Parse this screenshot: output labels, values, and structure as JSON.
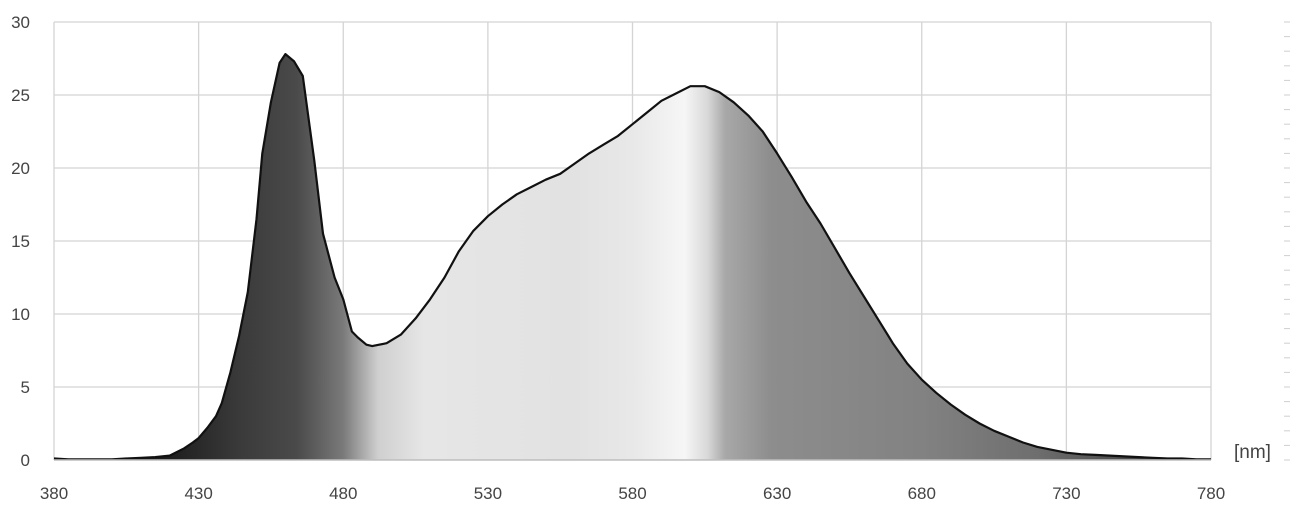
{
  "chart_data": {
    "type": "area",
    "title": "",
    "xlabel": "",
    "ylabel": "",
    "x_unit_label": "[nm]",
    "xlim": [
      380,
      780
    ],
    "ylim": [
      0,
      30
    ],
    "x_ticks": [
      "380",
      "430",
      "480",
      "530",
      "580",
      "630",
      "680",
      "730",
      "780"
    ],
    "y_ticks": [
      "0",
      "5",
      "10",
      "15",
      "20",
      "25",
      "30"
    ],
    "grid": true,
    "legend": "none",
    "fill": "visible-spectrum gradient rendered in grayscale",
    "line_color": "#111111",
    "series": [
      {
        "x": [
          380,
          385,
          390,
          395,
          400,
          405,
          410,
          415,
          420,
          425,
          428,
          430,
          433,
          436,
          438,
          441,
          444,
          447,
          450,
          452,
          455,
          458,
          460,
          463,
          466,
          470,
          473,
          477,
          480,
          483,
          485,
          488,
          490,
          495,
          500,
          505,
          510,
          515,
          520,
          525,
          530,
          535,
          540,
          545,
          550,
          555,
          560,
          565,
          570,
          575,
          580,
          585,
          590,
          595,
          600,
          605,
          610,
          615,
          620,
          625,
          630,
          635,
          640,
          645,
          650,
          655,
          660,
          665,
          670,
          675,
          680,
          685,
          690,
          695,
          700,
          705,
          710,
          715,
          720,
          725,
          730,
          735,
          740,
          745,
          750,
          755,
          760,
          765,
          770,
          775,
          780
        ],
        "values": [
          0.1,
          0.05,
          0.05,
          0.05,
          0.05,
          0.1,
          0.15,
          0.2,
          0.3,
          0.8,
          1.2,
          1.5,
          2.2,
          3.0,
          3.9,
          6.0,
          8.5,
          11.5,
          16.5,
          21.0,
          24.5,
          27.2,
          27.8,
          27.3,
          26.3,
          20.5,
          15.5,
          12.5,
          11.0,
          8.8,
          8.4,
          7.9,
          7.8,
          8.0,
          8.6,
          9.7,
          11.0,
          12.5,
          14.3,
          15.7,
          16.7,
          17.5,
          18.2,
          18.7,
          19.2,
          19.6,
          20.3,
          21.0,
          21.6,
          22.2,
          23.0,
          23.8,
          24.6,
          25.1,
          25.6,
          25.6,
          25.2,
          24.5,
          23.6,
          22.5,
          21.0,
          19.4,
          17.7,
          16.2,
          14.5,
          12.8,
          11.2,
          9.6,
          8.0,
          6.6,
          5.5,
          4.6,
          3.8,
          3.1,
          2.5,
          2.0,
          1.6,
          1.2,
          0.9,
          0.7,
          0.5,
          0.4,
          0.35,
          0.3,
          0.25,
          0.2,
          0.15,
          0.1,
          0.1,
          0.05,
          0.05
        ]
      }
    ]
  }
}
